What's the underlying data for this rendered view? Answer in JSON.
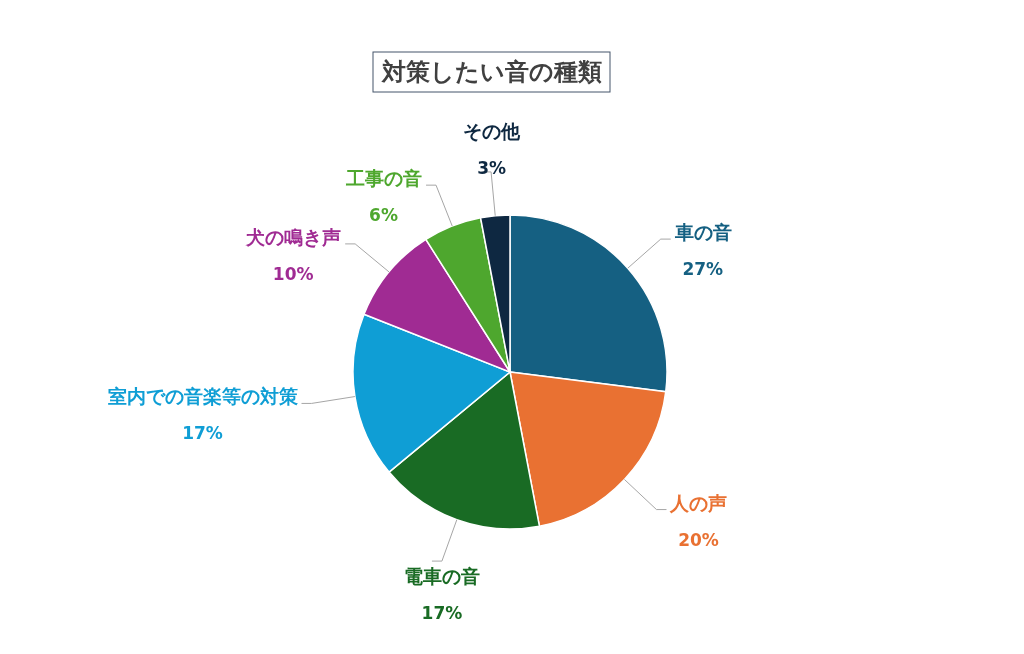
{
  "chart_data": {
    "type": "pie",
    "title": "対策したい音の種類",
    "categories": [
      "車の音",
      "人の声",
      "電車の音",
      "室内での音楽等の対策",
      "犬の鳴き声",
      "工事の音",
      "その他"
    ],
    "values": [
      27,
      20,
      17,
      17,
      10,
      6,
      3
    ],
    "colors": [
      "#156082",
      "#e97132",
      "#196b24",
      "#0f9ed5",
      "#a02b93",
      "#4ea72e",
      "#0e2841"
    ],
    "value_labels": [
      "27%",
      "20%",
      "17%",
      "17%",
      "10%",
      "6%",
      "3%"
    ]
  }
}
